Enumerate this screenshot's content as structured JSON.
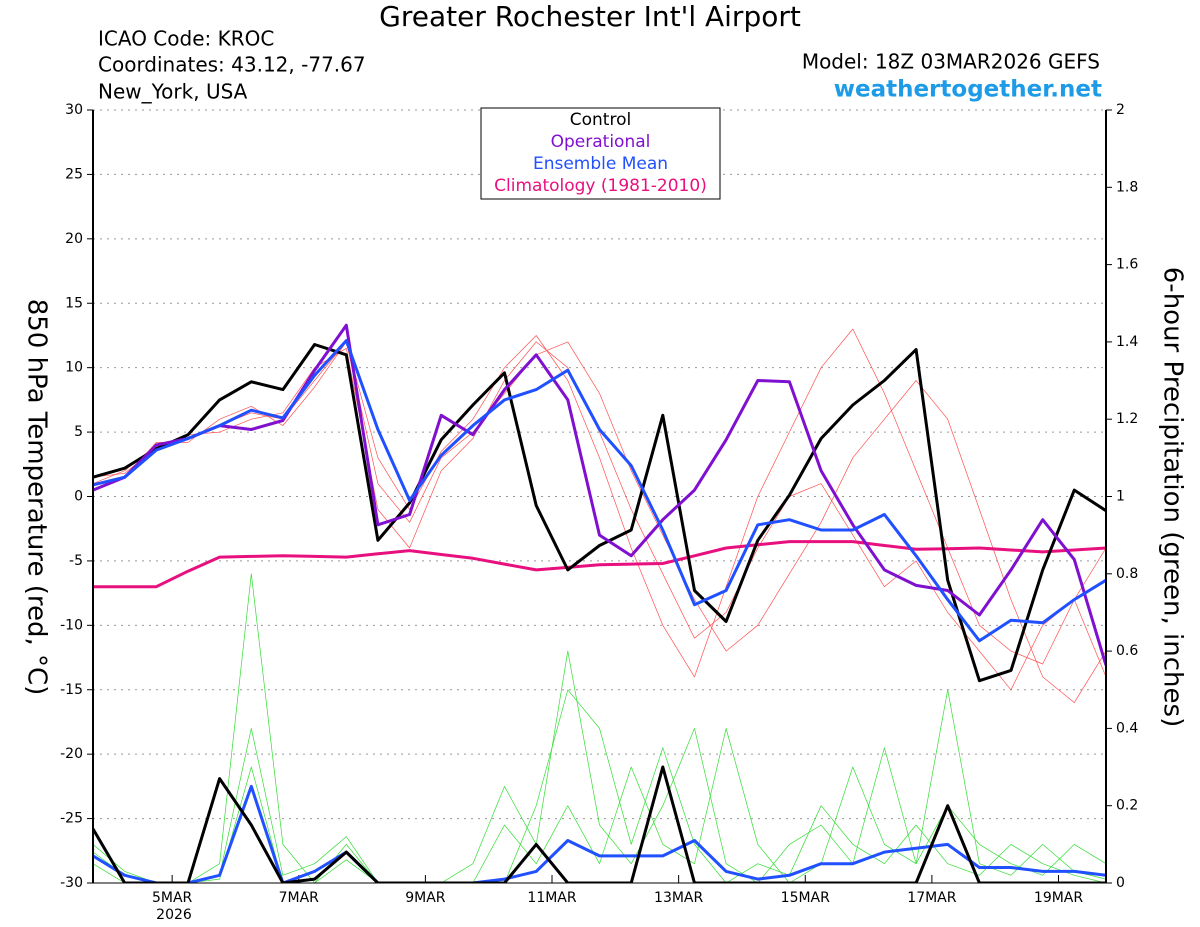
{
  "chart_data": {
    "type": "line",
    "title": "Greater Rochester Int'l Airport",
    "info_lines": [
      "ICAO Code: KROC",
      "Coordinates: 43.12, -77.67",
      "New_York, USA"
    ],
    "model": "Model: 18Z 03MAR2026 GEFS",
    "source": "weathertogether.net",
    "y_label": "850 hPa Temperature (red, °C)",
    "y2_label": "6-hour Precipitation (green, inches)",
    "x_year_label": "2026",
    "x": [
      0,
      12,
      24,
      36,
      48,
      60,
      72,
      84,
      96,
      108,
      120,
      132,
      144,
      156,
      168,
      180,
      192,
      204,
      216,
      228,
      240,
      252,
      264,
      276,
      288,
      300,
      312,
      324,
      336,
      348,
      360,
      372,
      384
    ],
    "xlim": [
      0,
      384
    ],
    "xticks": [
      {
        "value": 30,
        "label": "5MAR"
      },
      {
        "value": 78,
        "label": "7MAR"
      },
      {
        "value": 126,
        "label": "9MAR"
      },
      {
        "value": 174,
        "label": "11MAR"
      },
      {
        "value": 222,
        "label": "13MAR"
      },
      {
        "value": 270,
        "label": "15MAR"
      },
      {
        "value": 318,
        "label": "17MAR"
      },
      {
        "value": 366,
        "label": "19MAR"
      }
    ],
    "ylim": [
      -30,
      30
    ],
    "yticks": [
      -30,
      -25,
      -20,
      -15,
      -10,
      -5,
      0,
      5,
      10,
      15,
      20,
      25,
      30
    ],
    "y2lim": [
      0,
      2
    ],
    "y2ticks": [
      0,
      0.2,
      0.4,
      0.6,
      0.8,
      1,
      1.2,
      1.4,
      1.6,
      1.8,
      2
    ],
    "grid": true,
    "legend": "upper center",
    "series": [
      {
        "color": "#ff5050",
        "width": 0.7,
        "values": [
          1,
          2,
          4,
          4.5,
          5.5,
          6.5,
          6,
          9,
          12,
          1,
          -2,
          3,
          5,
          8,
          11,
          12,
          8,
          2,
          -3,
          -8,
          -12,
          -10,
          -6,
          -2,
          3,
          6,
          9,
          6,
          -1,
          -8,
          -14,
          -16,
          -12
        ]
      },
      {
        "color": "#ff5050",
        "width": 0.7,
        "values": [
          1.5,
          1.8,
          3.8,
          4.8,
          5,
          6,
          6.5,
          10,
          11.5,
          -1,
          -4,
          2,
          4.5,
          9,
          12,
          10,
          5,
          -1,
          -6,
          -11,
          -9,
          -4,
          0,
          1,
          -3,
          -7,
          -5,
          -9,
          -12,
          -15,
          -10,
          -8,
          -14
        ]
      },
      {
        "color": "#ff5050",
        "width": 0.7,
        "values": [
          1,
          1.5,
          4.2,
          4.2,
          6,
          7,
          5.5,
          8.5,
          12,
          3,
          -1,
          3.5,
          6,
          10,
          12.5,
          9,
          3,
          -4,
          -10,
          -14,
          -7,
          0,
          5,
          10,
          13,
          8,
          2,
          -4,
          -10,
          -12,
          -13,
          -8,
          -4
        ]
      },
      {
        "color": "#33dd33",
        "width": 0.7,
        "axis": "y2",
        "values": [
          0.05,
          0,
          0,
          0,
          0.01,
          0.3,
          0,
          0,
          0.06,
          0,
          0,
          0,
          0,
          0,
          0.2,
          0.5,
          0.4,
          0.1,
          0.35,
          0.1,
          0,
          0.05,
          0.02,
          0.2,
          0.1,
          0.05,
          0.15,
          0.05,
          0.02,
          0.1,
          0.05,
          0.02,
          0
        ]
      },
      {
        "color": "#33dd33",
        "width": 0.7,
        "axis": "y2",
        "values": [
          0.08,
          0.02,
          0,
          0,
          0.05,
          0.8,
          0.1,
          0,
          0.1,
          0,
          0,
          0,
          0,
          0.15,
          0.05,
          0.2,
          0.05,
          0.3,
          0.1,
          0.05,
          0.4,
          0.1,
          0,
          0.05,
          0.3,
          0.1,
          0.05,
          0.2,
          0.1,
          0.05,
          0.02,
          0.1,
          0.05
        ]
      },
      {
        "color": "#33dd33",
        "width": 0.7,
        "axis": "y2",
        "values": [
          0.1,
          0.03,
          0,
          0,
          0.02,
          0.4,
          0.02,
          0.05,
          0.12,
          0,
          0,
          0,
          0.05,
          0.25,
          0.1,
          0.6,
          0.15,
          0.05,
          0.2,
          0.4,
          0.05,
          0,
          0.1,
          0.15,
          0.05,
          0.35,
          0.05,
          0.5,
          0.05,
          0.02,
          0.1,
          0.03,
          0.01
        ]
      },
      {
        "name": "Climatology (1981-2010)",
        "color": "#e8107f",
        "width": 3,
        "values": [
          -7,
          -7,
          -7,
          -5.8,
          -4.7,
          -4.65,
          -4.6,
          -4.65,
          -4.7,
          -4.45,
          -4.2,
          -4.5,
          -4.8,
          -5.25,
          -5.7,
          -5.5,
          -5.3,
          -5.25,
          -5.2,
          -4.6,
          -4.0,
          -3.75,
          -3.5,
          -3.5,
          -3.5,
          -3.8,
          -4.1,
          -4.05,
          -4.0,
          -4.15,
          -4.3,
          -4.15,
          -4.0
        ]
      },
      {
        "color": "#2050ff",
        "width": 3,
        "axis": "y2",
        "values": [
          0.07,
          0.02,
          0,
          0,
          0.02,
          0.25,
          0,
          0.03,
          0.08,
          0,
          0,
          0,
          0,
          0.01,
          0.03,
          0.11,
          0.07,
          0.07,
          0.07,
          0.11,
          0.03,
          0.01,
          0.02,
          0.05,
          0.05,
          0.08,
          0.09,
          0.1,
          0.04,
          0.04,
          0.03,
          0.03,
          0.02
        ]
      },
      {
        "color": "#000000",
        "width": 3,
        "axis": "y2",
        "values": [
          0.14,
          0,
          0,
          0,
          0.27,
          0.15,
          0,
          0.01,
          0.08,
          0,
          0,
          0,
          0,
          0,
          0.1,
          0,
          0,
          0,
          0.3,
          0,
          0,
          0,
          0,
          0,
          0,
          0,
          0,
          0.2,
          0,
          0,
          0,
          0,
          0
        ]
      },
      {
        "name": "Control",
        "color": "#000000",
        "width": 3,
        "values": [
          1.5,
          2.2,
          3.7,
          4.8,
          7.5,
          8.9,
          8.3,
          11.8,
          11,
          -3.4,
          -0.5,
          4.4,
          7.1,
          9.6,
          -0.7,
          -5.7,
          -3.8,
          -2.6,
          6.3,
          -7.3,
          -9.7,
          -3.4,
          0.1,
          4.5,
          7.1,
          9,
          11.4,
          -6.5,
          -14.3,
          -13.5,
          -5.7,
          0.5,
          -1.1
        ]
      },
      {
        "name": "Operational",
        "color": "#8010d0",
        "width": 3,
        "values": [
          0.5,
          1.5,
          4,
          4.5,
          5.5,
          5.2,
          5.9,
          9.8,
          13.3,
          -2.2,
          -1.4,
          6.3,
          4.8,
          8.3,
          11,
          7.5,
          -3,
          -4.6,
          -1.8,
          0.5,
          4.4,
          9,
          8.9,
          2,
          -2.2,
          -5.7,
          -6.9,
          -7.3,
          -9.2,
          -5.7,
          -1.8,
          -4.9,
          -13.1
        ]
      },
      {
        "name": "Ensemble Mean",
        "color": "#2050ff",
        "width": 3,
        "values": [
          0.9,
          1.5,
          3.6,
          4.5,
          5.5,
          6.7,
          6.1,
          9.4,
          12.1,
          5.2,
          -0.3,
          3.2,
          5.5,
          7.5,
          8.3,
          9.8,
          5.2,
          2.4,
          -2.6,
          -8.4,
          -7.3,
          -2.2,
          -1.8,
          -2.6,
          -2.6,
          -1.4,
          -4.6,
          -8,
          -11.2,
          -9.6,
          -9.8,
          -8,
          -6.5
        ]
      }
    ]
  }
}
